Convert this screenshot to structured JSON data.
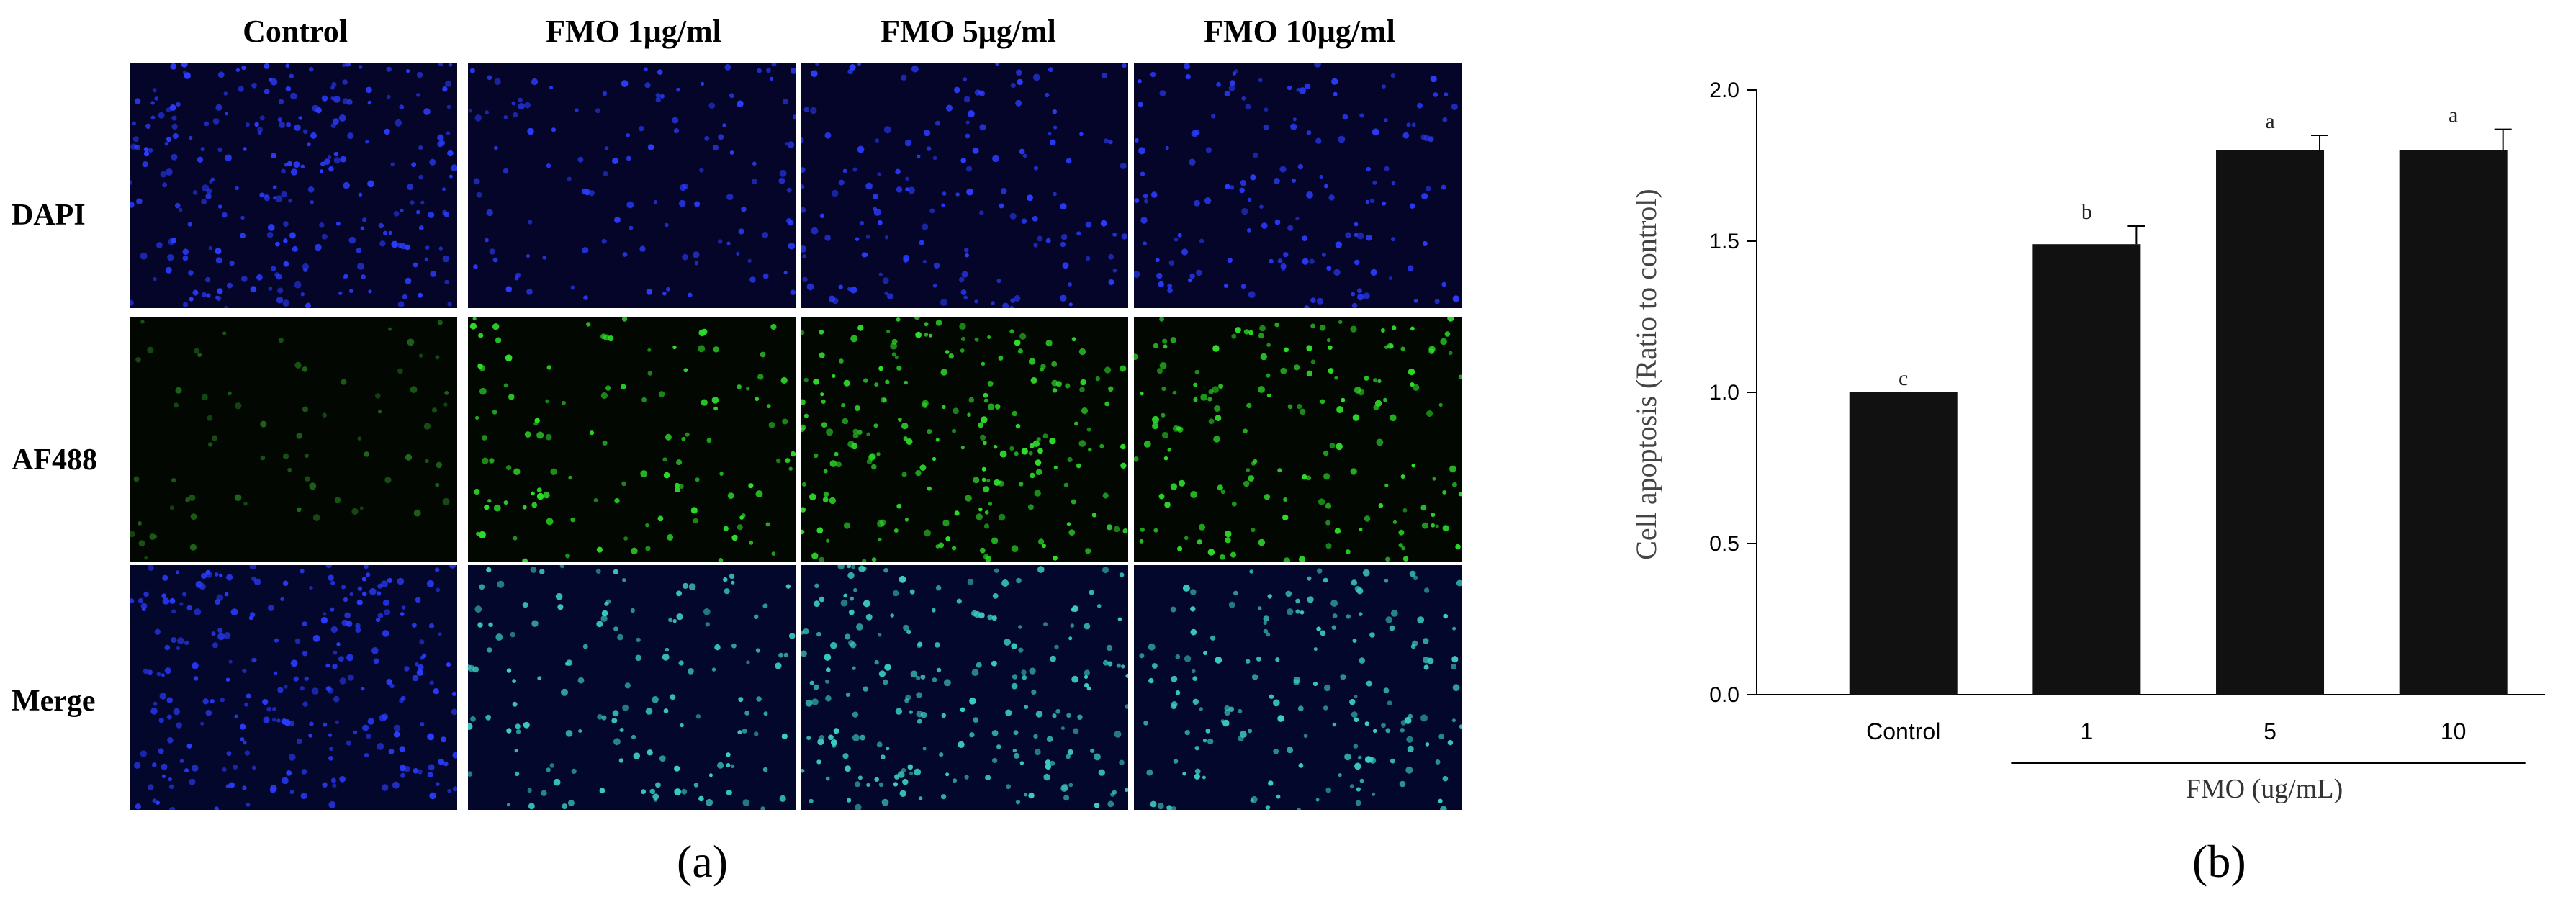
{
  "figure_a": {
    "columns": [
      "Control",
      "FMO 1μg/ml",
      "FMO 5μg/ml",
      "FMO 10μg/ml"
    ],
    "rows": [
      "DAPI",
      "AF488",
      "Merge"
    ],
    "label": "(a)"
  },
  "figure_b": {
    "label": "(b)"
  },
  "chart_data": {
    "type": "bar",
    "categories": [
      "Control",
      "1",
      "5",
      "10"
    ],
    "values": [
      1.0,
      1.49,
      1.8,
      1.8
    ],
    "errors": [
      0.0,
      0.06,
      0.05,
      0.07
    ],
    "significance": [
      "c",
      "b",
      "a",
      "a"
    ],
    "ylabel": "Cell apoptosis (Ratio to control)",
    "xlabel": "FMO (ug/mL)",
    "ylim": [
      0.0,
      2.0
    ],
    "yticks": [
      "0.0",
      "0.5",
      "1.0",
      "1.5",
      "2.0"
    ],
    "bar_color": "#111111",
    "grid": false
  },
  "colors": {
    "dapi": "#2a3cff",
    "af488": "#2ee02a",
    "merge": "#3ad0c0"
  }
}
